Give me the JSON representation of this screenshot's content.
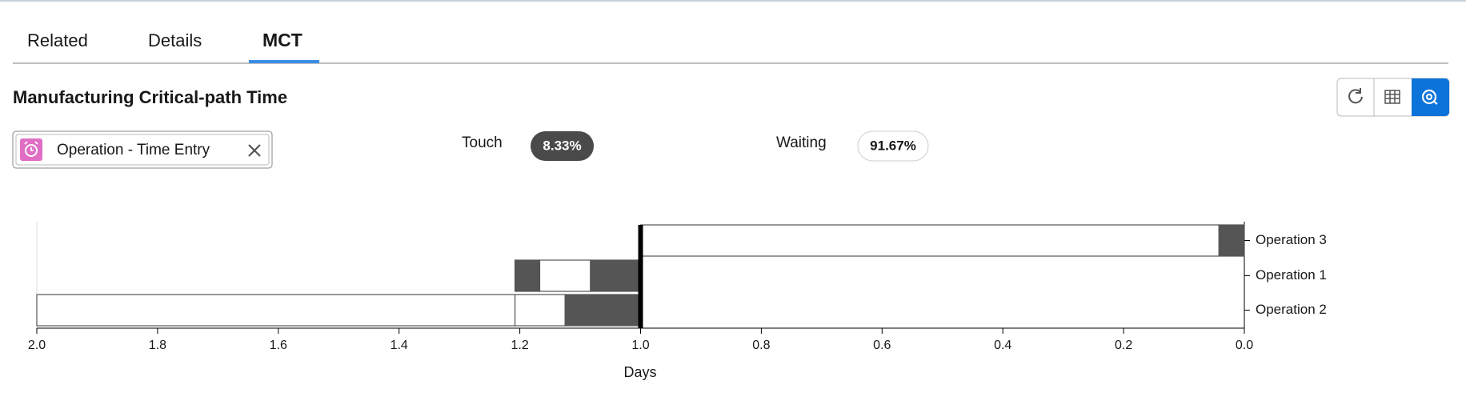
{
  "tabs": [
    "Related",
    "Details",
    "MCT"
  ],
  "header": {
    "title": "Manufacturing Critical-path Time"
  },
  "filter": {
    "label": "Operation - Time Entry"
  },
  "stats": [
    {
      "label": "Touch",
      "value": "8.33%"
    },
    {
      "label": "Waiting",
      "value": "91.67%"
    }
  ],
  "chart_data": {
    "type": "gantt",
    "xlabel": "Days",
    "categories": [
      "Operation 3",
      "Operation 1",
      "Operation 2"
    ],
    "xlim": [
      2.0,
      0.0
    ],
    "xticks": [
      {
        "value": 2,
        "label": "2.0"
      },
      1.8,
      1.6,
      1.4,
      1.2,
      {
        "value": 1,
        "label": "1.0"
      },
      0.8,
      0.6,
      0.4,
      0.2,
      {
        "value": 0,
        "label": "0.0"
      }
    ],
    "marker": 1.0,
    "segments": [
      {
        "category": 0,
        "start": 1.0,
        "end": 0.042,
        "color": "#ffffff"
      },
      {
        "category": 0,
        "start": 0.042,
        "end": 0.0,
        "color": "#555555"
      },
      {
        "category": 1,
        "start": 1.208,
        "end": 1.167,
        "color": "#555555"
      },
      {
        "category": 1,
        "start": 1.167,
        "end": 1.083,
        "color": "#ffffff"
      },
      {
        "category": 1,
        "start": 1.083,
        "end": 1.0,
        "color": "#555555"
      },
      {
        "category": 2,
        "start": 2.0,
        "end": 1.208,
        "color": "#ffffff"
      },
      {
        "category": 2,
        "start": 1.208,
        "end": 1.125,
        "color": "#ffffff"
      },
      {
        "category": 2,
        "start": 1.125,
        "end": 1.0,
        "color": "#555555"
      }
    ]
  }
}
